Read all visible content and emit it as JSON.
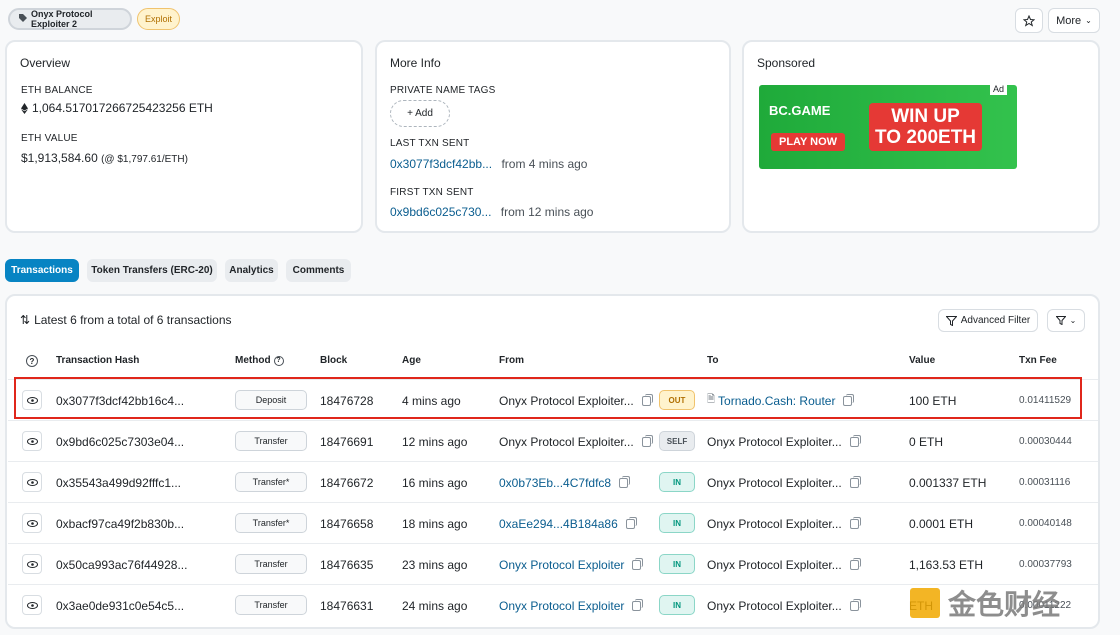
{
  "header": {
    "name_tag": "Onyx Protocol Exploiter 2",
    "exploit_tag": "Exploit",
    "more_label": "More"
  },
  "overview": {
    "title": "Overview",
    "eth_balance_label": "ETH BALANCE",
    "eth_balance": "1,064.517017266725423256 ETH",
    "eth_value_label": "ETH VALUE",
    "eth_value": "$1,913,584.60",
    "eth_price": "(@ $1,797.61/ETH)"
  },
  "more_info": {
    "title": "More Info",
    "private_tags_label": "PRIVATE NAME TAGS",
    "add_label": "+ Add",
    "last_txn_label": "LAST TXN SENT",
    "last_txn_hash": "0x3077f3dcf42bb...",
    "last_txn_age": "from 4 mins ago",
    "first_txn_label": "FIRST TXN SENT",
    "first_txn_hash": "0x9bd6c025c730...",
    "first_txn_age": "from 12 mins ago"
  },
  "sponsored": {
    "title": "Sponsored",
    "ad_brand": "BC.GAME",
    "ad_cta": "PLAY NOW",
    "ad_line1": "WIN UP",
    "ad_line2": "TO 200ETH",
    "ad_label": "Ad"
  },
  "tabs": [
    "Transactions",
    "Token Transfers (ERC-20)",
    "Analytics",
    "Comments"
  ],
  "table": {
    "summary": "Latest 6 from a total of 6 transactions",
    "advanced_filter": "Advanced Filter",
    "columns": {
      "hash": "Transaction Hash",
      "method": "Method",
      "block": "Block",
      "age": "Age",
      "from": "From",
      "to": "To",
      "value": "Value",
      "fee": "Txn Fee"
    },
    "rows": [
      {
        "hash": "0x3077f3dcf42bb16c4...",
        "method": "Deposit",
        "block": "18476728",
        "age": "4 mins ago",
        "from": "Onyx Protocol Exploiter...",
        "from_link": false,
        "dir": "OUT",
        "to": "Tornado.Cash: Router",
        "to_link": true,
        "value": "100 ETH",
        "fee": "0.01411529"
      },
      {
        "hash": "0x9bd6c025c7303e04...",
        "method": "Transfer",
        "block": "18476691",
        "age": "12 mins ago",
        "from": "Onyx Protocol Exploiter...",
        "from_link": false,
        "dir": "SELF",
        "to": "Onyx Protocol Exploiter...",
        "to_link": false,
        "value": "0 ETH",
        "fee": "0.00030444"
      },
      {
        "hash": "0x35543a499d92fffc1...",
        "method": "Transfer*",
        "block": "18476672",
        "age": "16 mins ago",
        "from": "0x0b73Eb...4C7fdfc8",
        "from_link": true,
        "dir": "IN",
        "to": "Onyx Protocol Exploiter...",
        "to_link": false,
        "value": "0.001337 ETH",
        "fee": "0.00031116"
      },
      {
        "hash": "0xbacf97ca49f2b830b...",
        "method": "Transfer*",
        "block": "18476658",
        "age": "18 mins ago",
        "from": "0xaEe294...4B184a86",
        "from_link": true,
        "dir": "IN",
        "to": "Onyx Protocol Exploiter...",
        "to_link": false,
        "value": "0.0001 ETH",
        "fee": "0.00040148"
      },
      {
        "hash": "0x50ca993ac76f44928...",
        "method": "Transfer",
        "block": "18476635",
        "age": "23 mins ago",
        "from": "Onyx Protocol Exploiter",
        "from_link": true,
        "dir": "IN",
        "to": "Onyx Protocol Exploiter...",
        "to_link": false,
        "value": "1,163.53 ETH",
        "fee": "0.00037793"
      },
      {
        "hash": "0x3ae0de931c0e54c5...",
        "method": "Transfer",
        "block": "18476631",
        "age": "24 mins ago",
        "from": "Onyx Protocol Exploiter",
        "from_link": true,
        "dir": "IN",
        "to": "Onyx Protocol Exploiter...",
        "to_link": false,
        "value": "ETH",
        "fee": "0.00011222"
      }
    ]
  },
  "watermark": "金色财经",
  "colors": {
    "accent": "#0784c3",
    "link": "#0a5d8f",
    "highlight": "#e0261b"
  }
}
